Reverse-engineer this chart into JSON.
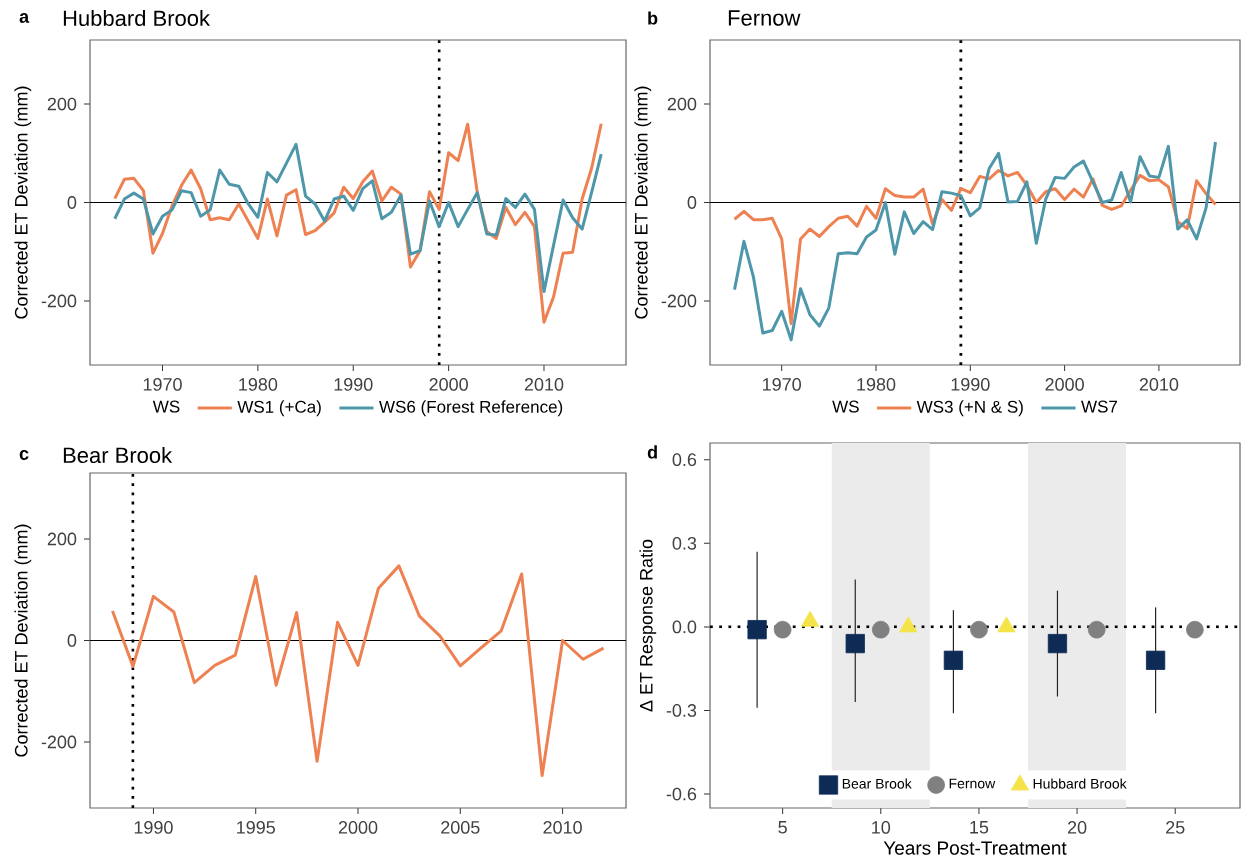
{
  "chart_data": [
    {
      "type": "line",
      "title": "Hubbard Brook",
      "ylabel": "Corrected ET Deviation (mm)",
      "annotations": [
        "a"
      ],
      "legend": "bottom",
      "legend_title": "WS",
      "x": [
        1965,
        1966,
        1967,
        1968,
        1969,
        1970,
        1971,
        1972,
        1973,
        1974,
        1975,
        1976,
        1977,
        1978,
        1979,
        1980,
        1981,
        1982,
        1983,
        1984,
        1985,
        1986,
        1987,
        1988,
        1989,
        1990,
        1991,
        1992,
        1993,
        1994,
        1995,
        1996,
        1997,
        1998,
        1999,
        2000,
        2001,
        2002,
        2003,
        2004,
        2005,
        2006,
        2007,
        2008,
        2009,
        2010,
        2011,
        2012,
        2013,
        2014,
        2015,
        2016
      ],
      "series": [
        {
          "name": "WS1 (+Ca)",
          "color": "#ee8151",
          "values": [
            8,
            47,
            49,
            24,
            -103,
            -63,
            -7,
            35,
            66,
            28,
            -35,
            -31,
            -35,
            -3,
            -38,
            -73,
            7,
            -68,
            15,
            26,
            -65,
            -57,
            -40,
            -21,
            31,
            8,
            42,
            64,
            3,
            31,
            17,
            -131,
            -98,
            22,
            -14,
            101,
            85,
            159,
            21,
            -59,
            -73,
            -10,
            -45,
            -20,
            -49,
            -243,
            -192,
            -103,
            -101,
            7,
            70,
            160
          ]
        },
        {
          "name": "WS6 (Forest Reference)",
          "color": "#4e97ab",
          "values": [
            -33,
            7,
            19,
            7,
            -64,
            -28,
            -15,
            24,
            20,
            -28,
            -15,
            66,
            37,
            33,
            -3,
            -30,
            61,
            42,
            80,
            118,
            13,
            -3,
            -38,
            7,
            13,
            -16,
            28,
            44,
            -33,
            -20,
            15,
            -105,
            -98,
            3,
            -49,
            0,
            -49,
            -14,
            20,
            -64,
            -66,
            8,
            -10,
            17,
            -14,
            -181,
            -87,
            5,
            -31,
            -54,
            21,
            98
          ]
        }
      ],
      "xlim": [
        1962.4,
        2018.6
      ],
      "ylim": [
        -330,
        330
      ],
      "xticks": [
        1970,
        1980,
        1990,
        2000,
        2010
      ],
      "yticks": [
        -200,
        0,
        200
      ],
      "ref_lines": [
        {
          "axis": "y",
          "value": 0,
          "color": "#000000",
          "line_style": "solid"
        },
        {
          "axis": "x",
          "value": 1999,
          "color": "#000000",
          "line_style": "dotted"
        }
      ]
    },
    {
      "type": "line",
      "title": "Fernow",
      "ylabel": "Corrected ET Deviation (mm)",
      "annotations": [
        "b"
      ],
      "legend": "bottom",
      "legend_title": "WS",
      "x": [
        1965,
        1966,
        1967,
        1968,
        1969,
        1970,
        1971,
        1972,
        1973,
        1974,
        1975,
        1976,
        1977,
        1978,
        1979,
        1980,
        1981,
        1982,
        1983,
        1984,
        1985,
        1986,
        1987,
        1988,
        1989,
        1990,
        1991,
        1992,
        1993,
        1994,
        1995,
        1996,
        1997,
        1998,
        1999,
        2000,
        2001,
        2002,
        2003,
        2004,
        2005,
        2006,
        2007,
        2008,
        2009,
        2010,
        2011,
        2012,
        2013,
        2014,
        2015,
        2016
      ],
      "series": [
        {
          "name": "WS3 (+N & S)",
          "color": "#ee8151",
          "values": [
            -34,
            -18,
            -35,
            -35,
            -32,
            -74,
            -246,
            -74,
            -54,
            -69,
            -49,
            -32,
            -28,
            -48,
            -8,
            -32,
            28,
            14,
            11,
            11,
            27,
            -44,
            6,
            -16,
            28,
            20,
            53,
            48,
            65,
            54,
            61,
            35,
            0,
            22,
            28,
            6,
            27,
            11,
            48,
            -6,
            -14,
            -7,
            25,
            55,
            44,
            46,
            32,
            -39,
            -53,
            44,
            18,
            -4
          ]
        },
        {
          "name": "WS7",
          "color": "#4e97ab",
          "values": [
            -177,
            -79,
            -151,
            -265,
            -260,
            -221,
            -279,
            -175,
            -228,
            -251,
            -214,
            -104,
            -102,
            -104,
            -70,
            -56,
            0,
            -105,
            -19,
            -63,
            -39,
            -55,
            22,
            19,
            14,
            -27,
            -11,
            69,
            100,
            1,
            2,
            42,
            -83,
            7,
            51,
            49,
            72,
            84,
            42,
            0,
            5,
            61,
            1,
            93,
            54,
            51,
            114,
            -54,
            -35,
            -74,
            -11,
            123
          ]
        }
      ],
      "xlim": [
        1962.4,
        2018.6
      ],
      "ylim": [
        -330,
        330
      ],
      "xticks": [
        1970,
        1980,
        1990,
        2000,
        2010
      ],
      "yticks": [
        -200,
        0,
        200
      ],
      "ref_lines": [
        {
          "axis": "y",
          "value": 0,
          "color": "#000000",
          "line_style": "solid"
        },
        {
          "axis": "x",
          "value": 1989,
          "color": "#000000",
          "line_style": "dotted"
        }
      ]
    },
    {
      "type": "line",
      "title": "Bear Brook",
      "ylabel": "Corrected ET Deviation (mm)",
      "annotations": [
        "c"
      ],
      "x": [
        1988,
        1989,
        1990,
        1991,
        1992,
        1993,
        1994,
        1995,
        1996,
        1997,
        1998,
        1999,
        2000,
        2001,
        2002,
        2003,
        2004,
        2005,
        2006,
        2007,
        2008,
        2009,
        2010,
        2011,
        2012
      ],
      "series": [
        {
          "color": "#ee8151",
          "values": [
            58,
            -51,
            87,
            56,
            -83,
            -49,
            -29,
            126,
            -88,
            55,
            -238,
            36,
            -49,
            103,
            147,
            48,
            9,
            -50,
            -15,
            19,
            131,
            -266,
            0,
            -37,
            -15
          ]
        }
      ],
      "xlim": [
        1986.9,
        2013.1
      ],
      "ylim": [
        -330,
        330
      ],
      "xticks": [
        1990,
        1995,
        2000,
        2005,
        2010
      ],
      "yticks": [
        -200,
        0,
        200
      ],
      "ref_lines": [
        {
          "axis": "y",
          "value": 0,
          "color": "#000000",
          "line_style": "solid"
        },
        {
          "axis": "x",
          "value": 1989,
          "color": "#000000",
          "line_style": "dotted"
        }
      ]
    },
    {
      "type": "scatter",
      "xlabel": "Years Post-Treatment",
      "ylabel": "Δ ET Response Ratio",
      "annotations": [
        "d"
      ],
      "legend": "bottom",
      "series": [
        {
          "name": "Bear Brook",
          "color": "#0d2b55",
          "marker": "square",
          "x": [
            3.7,
            8.7,
            13.7,
            19,
            24
          ],
          "values": [
            -0.01,
            -0.06,
            -0.12,
            -0.06,
            -0.12
          ],
          "errors": [
            [
              -0.29,
              0.27
            ],
            [
              -0.27,
              0.17
            ],
            [
              -0.31,
              0.06
            ],
            [
              -0.25,
              0.13
            ],
            [
              -0.31,
              0.07
            ]
          ]
        },
        {
          "name": "Fernow",
          "color": "#808080",
          "marker": "circle",
          "x": [
            5,
            10,
            15,
            21,
            26
          ],
          "values": [
            -0.01,
            -0.01,
            -0.01,
            -0.01,
            -0.01
          ]
        },
        {
          "name": "Hubbard Brook",
          "color": "#f5e34a",
          "marker": "triangle",
          "x": [
            6.4,
            11.4,
            16.4
          ],
          "values": [
            0.02,
            0,
            0
          ]
        }
      ],
      "xlim": [
        1.3,
        28.3
      ],
      "ylim": [
        -0.65,
        0.66
      ],
      "xticks": [
        5,
        10,
        15,
        20,
        25
      ],
      "yticks": [
        -0.6,
        -0.3,
        {
          "value": 0,
          "label": "0.0"
        },
        0.3,
        0.6
      ],
      "bands": [
        {
          "axis": "x",
          "from": 7.5,
          "to": 12.5,
          "color": "#ebebeb"
        },
        {
          "axis": "x",
          "from": 17.5,
          "to": 22.5,
          "color": "#ebebeb"
        }
      ],
      "ref_lines": [
        {
          "axis": "y",
          "value": 0,
          "color": "#000000",
          "line_style": "dotted"
        }
      ]
    }
  ]
}
